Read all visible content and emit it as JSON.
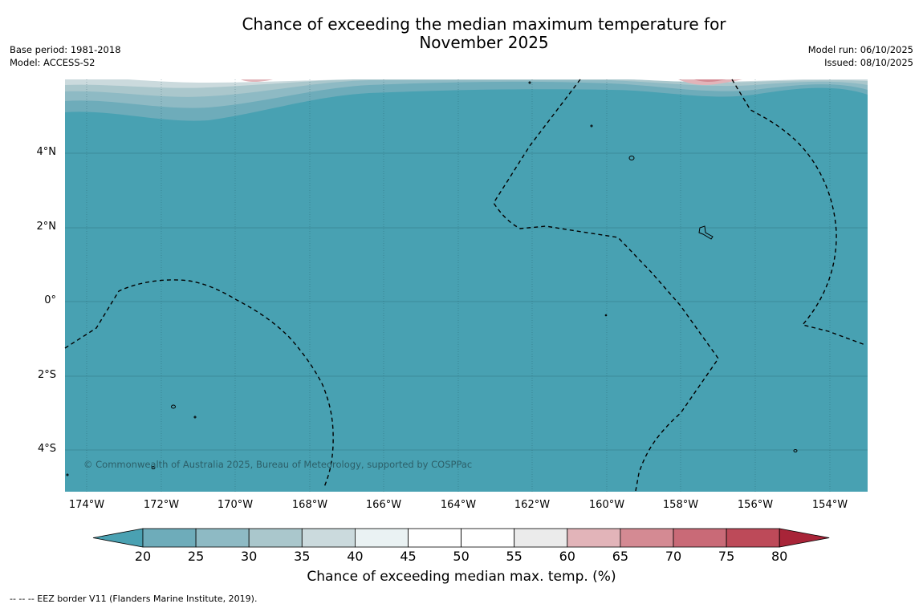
{
  "title_line1": "Chance of exceeding the median maximum temperature for",
  "title_line2": "November 2025",
  "meta_left": {
    "base_period": "Base period: 1981-2018",
    "model": "Model: ACCESS-S2"
  },
  "meta_right": {
    "model_run": "Model run: 06/10/2025",
    "issued": "Issued: 08/10/2025"
  },
  "copyright": "© Commonwealth of Australia 2025, Bureau of Meteorology, supported by COSPPac",
  "lat_ticks": [
    "4°N",
    "2°N",
    "0°",
    "2°S",
    "4°S"
  ],
  "lon_ticks": [
    "174°W",
    "172°W",
    "170°W",
    "168°W",
    "166°W",
    "164°W",
    "162°W",
    "160°W",
    "158°W",
    "156°W",
    "154°W"
  ],
  "colorbar": {
    "ticks": [
      "20",
      "25",
      "30",
      "35",
      "40",
      "45",
      "50",
      "55",
      "60",
      "65",
      "70",
      "75",
      "80"
    ],
    "colors": [
      "#4aa1b2",
      "#6eacba",
      "#8ebac4",
      "#aac7cc",
      "#cbdadd",
      "#eaf2f3",
      "#ffffff",
      "#ffffff",
      "#ebebeb",
      "#e2b4b9",
      "#d48a93",
      "#c96a77",
      "#bd4a59",
      "#a82438"
    ],
    "label": "Chance of exceeding median max. temp. (%)"
  },
  "footer": "--  --  -- EEZ border V11 (Flanders Marine Institute, 2019).",
  "colors": {
    "ocean_fill": "#48a1b2",
    "grid": "#1f4f5a",
    "eez_line": "#000000"
  }
}
